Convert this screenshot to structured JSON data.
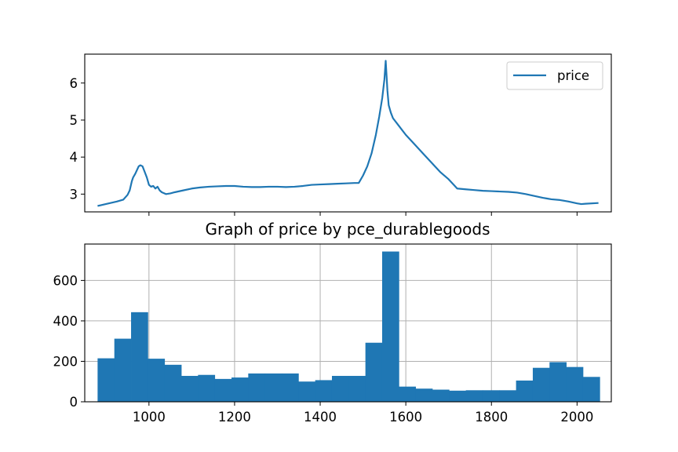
{
  "chart_data": [
    {
      "type": "line",
      "title": "",
      "xlabel": "",
      "ylabel": "",
      "x_range": [
        850,
        2080
      ],
      "ylim": [
        2.52,
        6.78
      ],
      "yticks": [
        3,
        4,
        5,
        6
      ],
      "xticks_unlabeled": [
        1000,
        1200,
        1400,
        1600,
        1800,
        2000
      ],
      "grid": false,
      "legend": {
        "placement": "upper right",
        "entries": [
          "price"
        ]
      },
      "series": [
        {
          "name": "price",
          "color": "#1f77b4",
          "x": [
            880,
            895,
            910,
            925,
            940,
            950,
            955,
            960,
            963,
            968,
            972,
            976,
            980,
            985,
            990,
            995,
            1000,
            1005,
            1010,
            1015,
            1020,
            1025,
            1030,
            1040,
            1050,
            1060,
            1080,
            1100,
            1120,
            1140,
            1160,
            1180,
            1200,
            1220,
            1240,
            1260,
            1280,
            1300,
            1320,
            1340,
            1360,
            1380,
            1400,
            1420,
            1440,
            1460,
            1480,
            1490,
            1500,
            1510,
            1520,
            1530,
            1538,
            1545,
            1550,
            1553,
            1555,
            1557,
            1560,
            1565,
            1570,
            1580,
            1590,
            1600,
            1620,
            1640,
            1660,
            1680,
            1700,
            1720,
            1730,
            1740,
            1760,
            1780,
            1800,
            1820,
            1840,
            1860,
            1880,
            1900,
            1920,
            1930,
            1940,
            1960,
            1980,
            2000,
            2010,
            2020,
            2050
          ],
          "y": [
            2.68,
            2.72,
            2.76,
            2.8,
            2.85,
            2.98,
            3.1,
            3.35,
            3.45,
            3.55,
            3.65,
            3.75,
            3.78,
            3.75,
            3.6,
            3.45,
            3.25,
            3.2,
            3.22,
            3.15,
            3.2,
            3.1,
            3.05,
            3.0,
            3.02,
            3.05,
            3.1,
            3.15,
            3.18,
            3.2,
            3.21,
            3.22,
            3.22,
            3.2,
            3.19,
            3.19,
            3.2,
            3.2,
            3.19,
            3.2,
            3.22,
            3.25,
            3.26,
            3.27,
            3.28,
            3.29,
            3.3,
            3.3,
            3.5,
            3.75,
            4.1,
            4.6,
            5.1,
            5.6,
            6.1,
            6.6,
            6.2,
            5.8,
            5.4,
            5.2,
            5.05,
            4.9,
            4.75,
            4.6,
            4.35,
            4.1,
            3.85,
            3.6,
            3.4,
            3.15,
            3.14,
            3.13,
            3.11,
            3.09,
            3.08,
            3.07,
            3.06,
            3.04,
            3.0,
            2.95,
            2.9,
            2.88,
            2.86,
            2.84,
            2.8,
            2.75,
            2.73,
            2.74,
            2.76
          ]
        }
      ]
    },
    {
      "type": "bar",
      "title": "Graph of price by pce_durablegoods",
      "xlabel": "",
      "ylabel": "",
      "x_range": [
        850,
        2080
      ],
      "ylim": [
        0,
        780
      ],
      "xticks": [
        1000,
        1200,
        1400,
        1600,
        1800,
        2000
      ],
      "yticks": [
        0,
        200,
        400,
        600
      ],
      "grid": true,
      "bar_color": "#1f77b4",
      "bin_edges": [
        880,
        919.1,
        958.2,
        997.3,
        1036.4,
        1075.5,
        1114.6,
        1153.7,
        1192.8,
        1231.9,
        1271,
        1310.1,
        1349.2,
        1388.3,
        1427.4,
        1466.5,
        1505.6,
        1544.7,
        1583.8,
        1622.9,
        1662,
        1701.1,
        1740.2,
        1779.3,
        1818.4,
        1857.5,
        1896.6,
        1935.7,
        1974.8,
        2013.9,
        2053
      ],
      "values": [
        215,
        312,
        443,
        213,
        183,
        128,
        133,
        113,
        120,
        140,
        140,
        140,
        100,
        107,
        128,
        128,
        292,
        743,
        75,
        65,
        60,
        55,
        57,
        57,
        57,
        105,
        168,
        196,
        172,
        123
      ]
    }
  ]
}
